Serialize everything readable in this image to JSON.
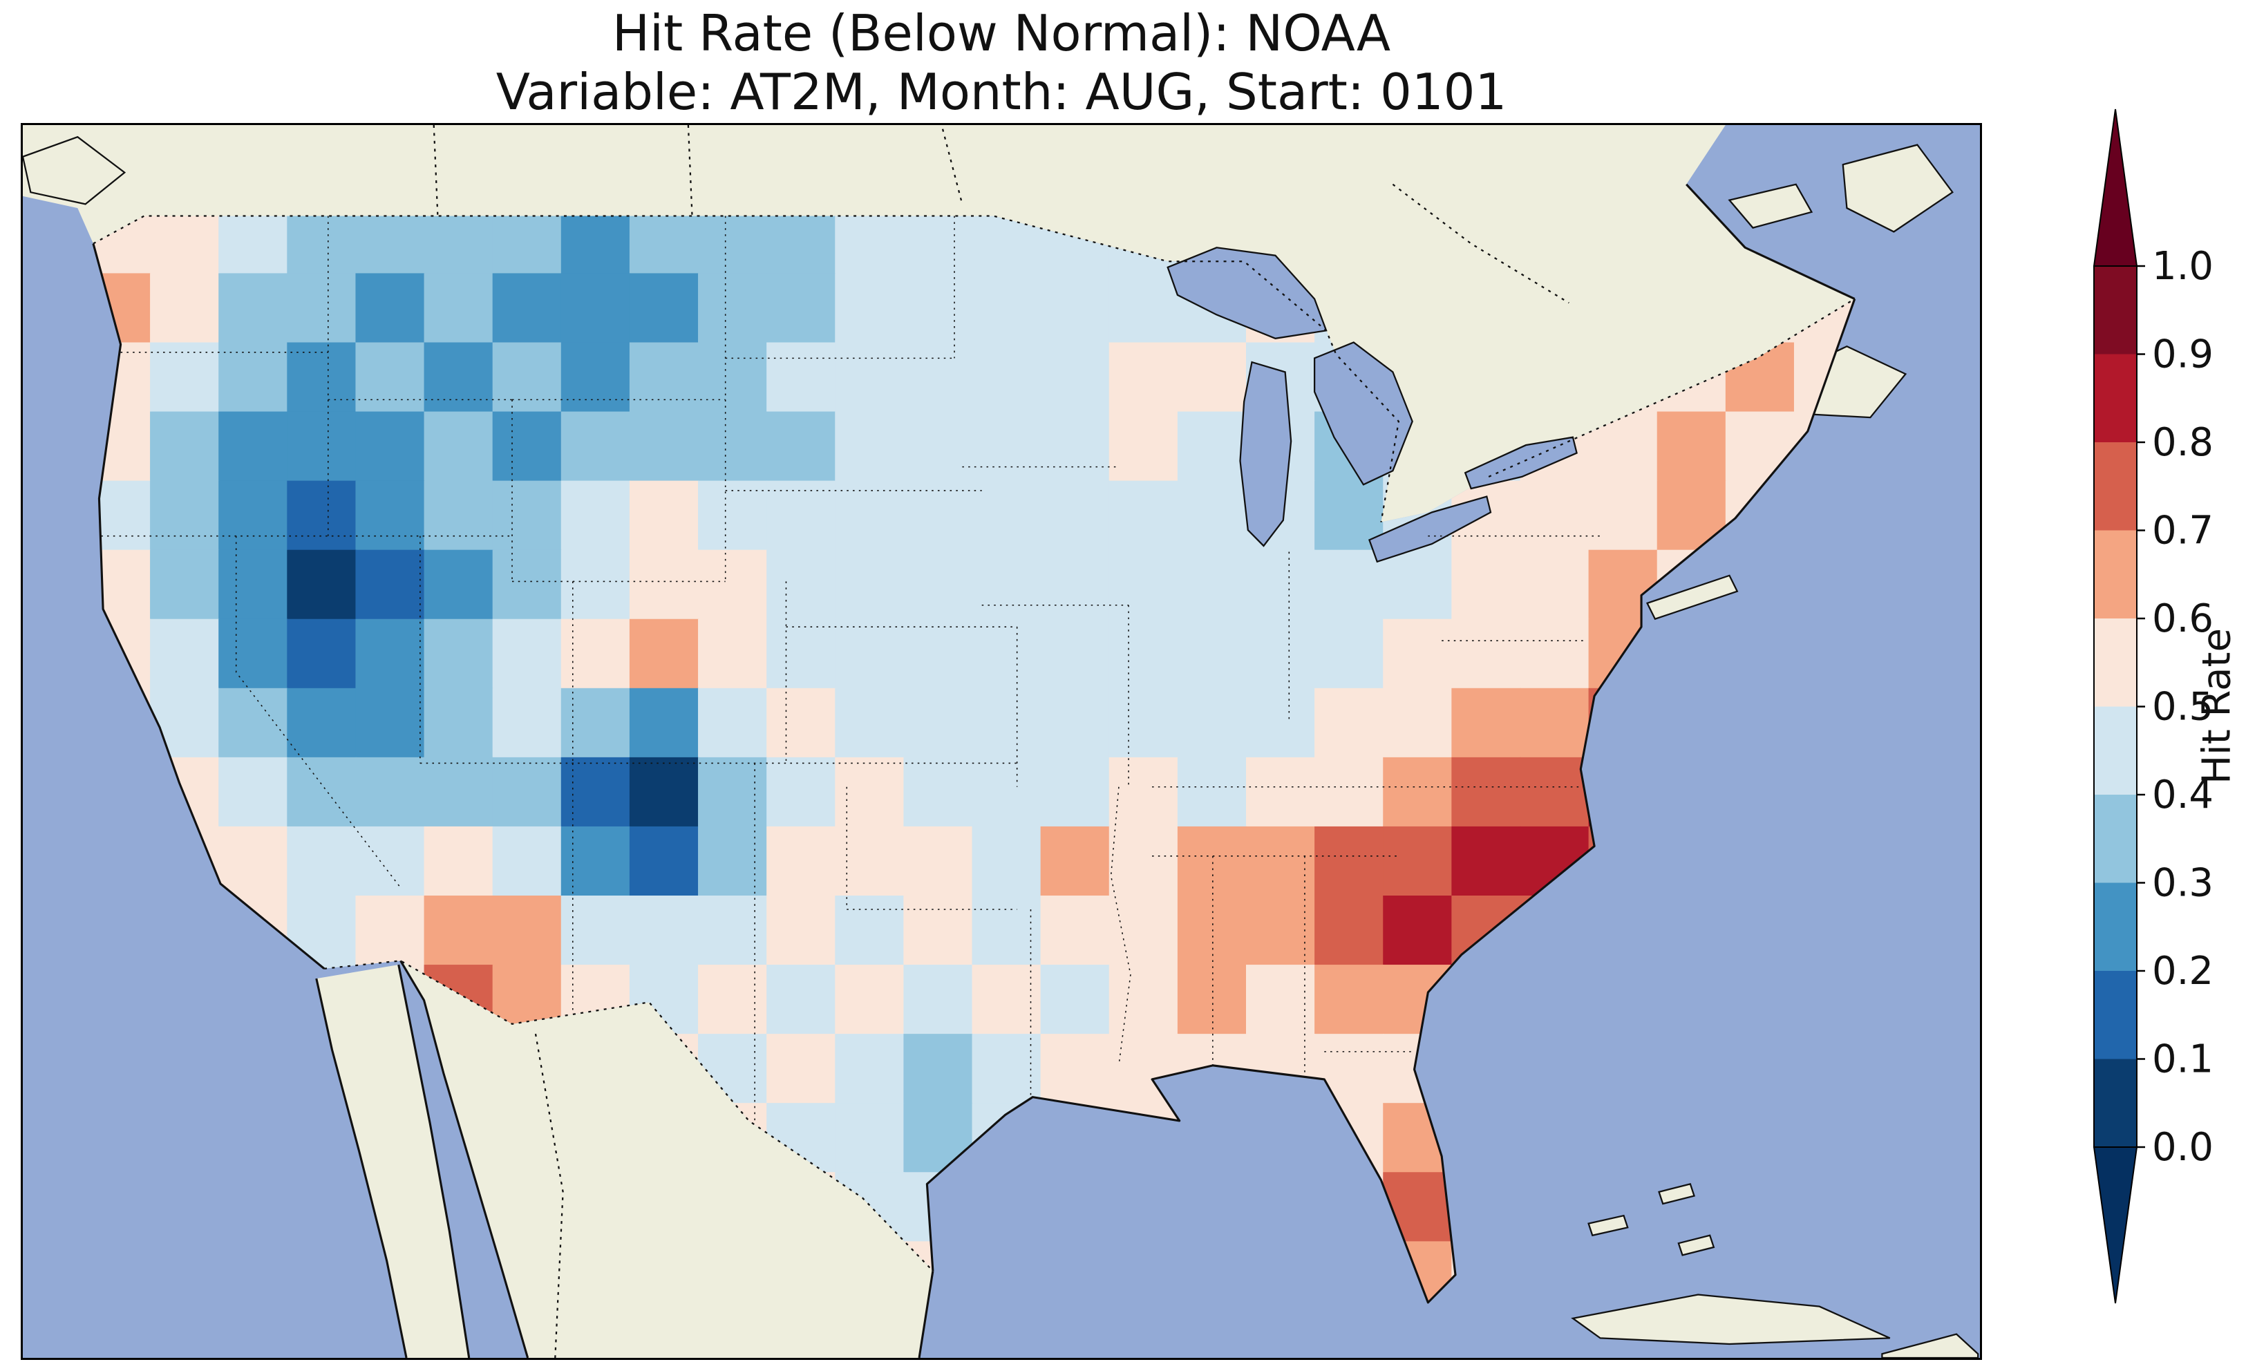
{
  "figure": {
    "title_line1": "Hit Rate (Below Normal): NOAA",
    "title_line2": "Variable: AT2M, Month: AUG, Start: 0101"
  },
  "chart_data": {
    "type": "heatmap",
    "title": "Hit Rate (Below Normal): NOAA",
    "subtitle": "Variable: AT2M, Month: AUG, Start: 0101",
    "variable": "AT2M",
    "month": "AUG",
    "start": "0101",
    "region": "Contiguous United States map",
    "value_name": "Hit Rate",
    "value_range": [
      0.0,
      1.0
    ],
    "bin_size": 0.1,
    "colorbar": {
      "label": "Hit Rate",
      "tick_labels": [
        "1.0",
        "0.9",
        "0.8",
        "0.7",
        "0.6",
        "0.5",
        "0.4",
        "0.3",
        "0.2",
        "0.1",
        "0.0"
      ],
      "tick_values": [
        1.0,
        0.9,
        0.8,
        0.7,
        0.6,
        0.5,
        0.4,
        0.3,
        0.2,
        0.1,
        0.0
      ],
      "bin_colors_low_to_high": [
        "#0b3d6f",
        "#2166ac",
        "#4393c3",
        "#92c5de",
        "#d1e5f0",
        "#fae6da",
        "#f4a582",
        "#d6604d",
        "#b2182b",
        "#7f0c23"
      ],
      "under_arrow_color": "#053061",
      "over_arrow_color": "#67001f"
    },
    "map_colors": {
      "ocean": "#93aad6",
      "land": "#eeeedd",
      "coastline": "#111111"
    },
    "grid": {
      "cols": 26,
      "rows": 16,
      "orientation": "rows run north to south, columns run west to east",
      "values_north_to_south": [
        [
          0.55,
          0.55,
          0.45,
          0.35,
          0.3,
          0.35,
          0.3,
          0.25,
          0.35,
          0.3,
          0.35,
          0.4,
          0.45,
          0.45,
          0.4,
          0.45,
          0.45,
          0.45,
          0.5,
          0.5,
          0.5,
          0.5,
          0.5,
          0.5,
          0.5,
          0.5
        ],
        [
          0.6,
          0.5,
          0.35,
          0.3,
          0.25,
          0.3,
          0.25,
          0.2,
          0.25,
          0.3,
          0.35,
          0.4,
          0.45,
          0.4,
          0.45,
          0.4,
          0.45,
          0.5,
          0.45,
          0.5,
          0.5,
          0.5,
          0.55,
          0.55,
          0.5,
          0.5
        ],
        [
          0.55,
          0.4,
          0.3,
          0.25,
          0.3,
          0.25,
          0.3,
          0.25,
          0.3,
          0.35,
          0.4,
          0.4,
          0.45,
          0.45,
          0.4,
          0.55,
          0.55,
          0.45,
          0.4,
          0.45,
          0.5,
          0.5,
          0.55,
          0.55,
          0.6,
          0.5
        ],
        [
          0.5,
          0.35,
          0.25,
          0.2,
          0.25,
          0.3,
          0.25,
          0.3,
          0.35,
          0.3,
          0.35,
          0.4,
          0.4,
          0.45,
          0.45,
          0.5,
          0.45,
          0.4,
          0.35,
          0.4,
          0.45,
          0.5,
          0.55,
          0.6,
          0.55,
          0.5
        ],
        [
          0.45,
          0.3,
          0.2,
          0.15,
          0.2,
          0.3,
          0.35,
          0.4,
          0.55,
          0.45,
          0.4,
          0.45,
          0.4,
          0.45,
          0.4,
          0.4,
          0.45,
          0.4,
          0.35,
          0.4,
          0.5,
          0.55,
          0.55,
          0.6,
          0.55,
          0.5
        ],
        [
          0.5,
          0.35,
          0.2,
          0.05,
          0.15,
          0.25,
          0.35,
          0.45,
          0.55,
          0.5,
          0.4,
          0.45,
          0.45,
          0.4,
          0.45,
          0.4,
          0.4,
          0.45,
          0.4,
          0.45,
          0.5,
          0.55,
          0.6,
          0.55,
          0.6,
          0.5
        ],
        [
          0.55,
          0.4,
          0.25,
          0.15,
          0.2,
          0.3,
          0.4,
          0.5,
          0.6,
          0.55,
          0.45,
          0.4,
          0.45,
          0.4,
          0.45,
          0.4,
          0.45,
          0.4,
          0.45,
          0.5,
          0.55,
          0.5,
          0.6,
          0.55,
          0.55,
          0.5
        ],
        [
          0.55,
          0.45,
          0.3,
          0.25,
          0.25,
          0.35,
          0.4,
          0.35,
          0.25,
          0.45,
          0.5,
          0.45,
          0.4,
          0.45,
          0.4,
          0.45,
          0.4,
          0.45,
          0.5,
          0.55,
          0.6,
          0.65,
          0.7,
          0.6,
          0.5,
          0.5
        ],
        [
          0.55,
          0.5,
          0.4,
          0.3,
          0.3,
          0.35,
          0.3,
          0.15,
          0.05,
          0.3,
          0.45,
          0.5,
          0.45,
          0.4,
          0.45,
          0.5,
          0.45,
          0.5,
          0.55,
          0.6,
          0.7,
          0.75,
          0.8,
          0.7,
          0.5,
          0.5
        ],
        [
          0.5,
          0.55,
          0.5,
          0.4,
          0.45,
          0.5,
          0.45,
          0.25,
          0.15,
          0.35,
          0.5,
          0.55,
          0.5,
          0.45,
          0.6,
          0.55,
          0.6,
          0.65,
          0.7,
          0.75,
          0.85,
          0.8,
          0.7,
          0.6,
          0.5,
          0.5
        ],
        [
          0.5,
          0.55,
          0.5,
          0.45,
          0.55,
          0.65,
          0.6,
          0.45,
          0.4,
          0.45,
          0.5,
          0.45,
          0.5,
          0.45,
          0.5,
          0.55,
          0.6,
          0.65,
          0.7,
          0.8,
          0.75,
          0.7,
          0.65,
          0.55,
          0.5,
          0.5
        ],
        [
          0.5,
          0.5,
          0.5,
          0.45,
          0.55,
          0.75,
          0.65,
          0.5,
          0.45,
          0.5,
          0.45,
          0.5,
          0.45,
          0.5,
          0.45,
          0.55,
          0.6,
          0.55,
          0.6,
          0.65,
          0.7,
          0.65,
          0.6,
          0.5,
          0.5,
          0.5
        ],
        [
          0.5,
          0.5,
          0.5,
          0.5,
          0.5,
          0.55,
          0.5,
          0.45,
          0.5,
          0.45,
          0.5,
          0.45,
          0.35,
          0.45,
          0.5,
          0.55,
          0.5,
          0.55,
          0.5,
          0.55,
          0.6,
          0.65,
          0.6,
          0.5,
          0.5,
          0.5
        ],
        [
          0.5,
          0.5,
          0.5,
          0.5,
          0.5,
          0.5,
          0.5,
          0.5,
          0.45,
          0.5,
          0.45,
          0.4,
          0.35,
          0.45,
          0.5,
          0.5,
          0.5,
          0.5,
          0.5,
          0.65,
          0.7,
          0.65,
          0.5,
          0.5,
          0.5,
          0.5
        ],
        [
          0.5,
          0.5,
          0.5,
          0.5,
          0.5,
          0.5,
          0.5,
          0.5,
          0.5,
          0.45,
          0.5,
          0.45,
          0.4,
          0.5,
          0.5,
          0.5,
          0.5,
          0.5,
          0.5,
          0.75,
          0.7,
          0.5,
          0.5,
          0.5,
          0.5,
          0.5
        ],
        [
          0.5,
          0.5,
          0.5,
          0.5,
          0.5,
          0.5,
          0.5,
          0.5,
          0.5,
          0.5,
          0.5,
          0.45,
          0.5,
          0.5,
          0.5,
          0.5,
          0.5,
          0.5,
          0.5,
          0.6,
          0.55,
          0.5,
          0.5,
          0.5,
          0.5,
          0.5
        ]
      ]
    },
    "regional_summary": {
      "low_hit_rate_blue_regions": [
        "Pacific interior / Nevada-Utah (0.05-0.2)",
        "Montana / northern Rockies (0.2-0.3)",
        "southern Colorado / northern New Mexico (0.05-0.2)",
        "upper Midwest near Great Lakes (0.3-0.4)"
      ],
      "high_hit_rate_red_regions": [
        "Southeast: Georgia / Carolinas / Tennessee (0.7-0.85)",
        "coastal Virginia / North Carolina (0.7-0.8)",
        "southern Arizona (0.65-0.75)",
        "central-south Florida (0.65-0.75)",
        "Pacific Northwest coast (0.55-0.6)",
        "Northeast seaboard (0.55-0.6)"
      ]
    }
  }
}
